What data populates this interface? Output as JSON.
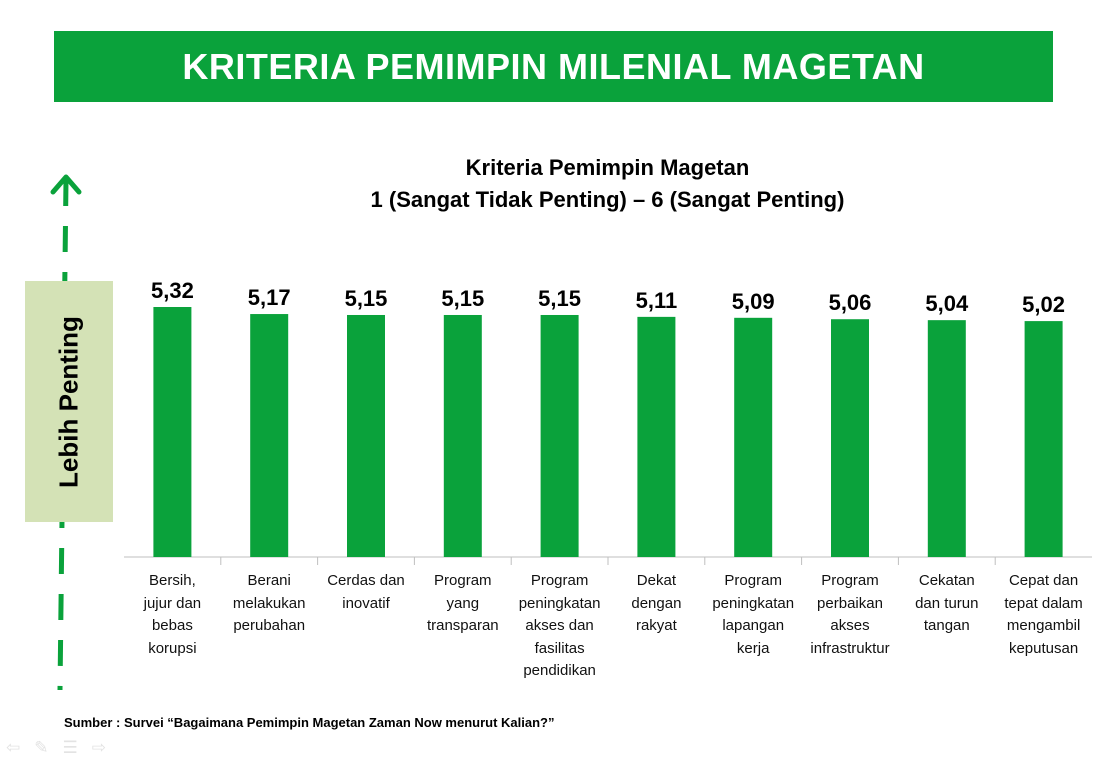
{
  "banner": {
    "title": "KRITERIA PEMIMPIN MILENIAL MAGETAN"
  },
  "side_label": "Lebih Penting",
  "source": "Sumber : Survei “Bagaimana Pemimpin Magetan Zaman Now menurut Kalian?”",
  "colors": {
    "bar": "#0aa23b",
    "banner": "#0aa23b",
    "side_label_bg": "#d4e2b6",
    "arrow": "#0aa23b"
  },
  "chart_data": {
    "type": "bar",
    "title": "Kriteria Pemimpin Magetan",
    "subtitle": "1 (Sangat Tidak Penting) – 6 (Sangat Penting)",
    "categories": [
      "Bersih, jujur dan bebas korupsi",
      "Berani melakukan perubahan",
      "Cerdas dan inovatif",
      "Program yang transparan",
      "Program peningkatan akses dan fasilitas pendidikan",
      "Dekat dengan rakyat",
      "Program peningkatan lapangan kerja",
      "Program perbaikan akses infrastruktur",
      "Cekatan dan turun tangan",
      "Cepat dan tepat dalam mengambil keputusan"
    ],
    "category_lines": [
      [
        "Bersih,",
        "jujur dan",
        "bebas",
        "korupsi"
      ],
      [
        "Berani",
        "melakukan",
        "perubahan"
      ],
      [
        "Cerdas dan",
        "inovatif"
      ],
      [
        "Program",
        "yang",
        "transparan"
      ],
      [
        "Program",
        "peningkatan",
        "akses dan",
        "fasilitas",
        "pendidikan"
      ],
      [
        "Dekat",
        "dengan",
        "rakyat"
      ],
      [
        "Program",
        "peningkatan",
        "lapangan",
        "kerja"
      ],
      [
        "Program",
        "perbaikan",
        "akses",
        "infrastruktur"
      ],
      [
        "Cekatan",
        "dan turun",
        "tangan"
      ],
      [
        "Cepat dan",
        "tepat dalam",
        "mengambil",
        "keputusan"
      ]
    ],
    "values": [
      5.32,
      5.17,
      5.15,
      5.15,
      5.15,
      5.11,
      5.09,
      5.06,
      5.04,
      5.02
    ],
    "value_labels": [
      "5,32",
      "5,17",
      "5,15",
      "5,15",
      "5,15",
      "5,11",
      "5,09",
      "5,06",
      "5,04",
      "5,02"
    ],
    "ylim": [
      0,
      5.32
    ],
    "grid": false,
    "legend": "none"
  }
}
